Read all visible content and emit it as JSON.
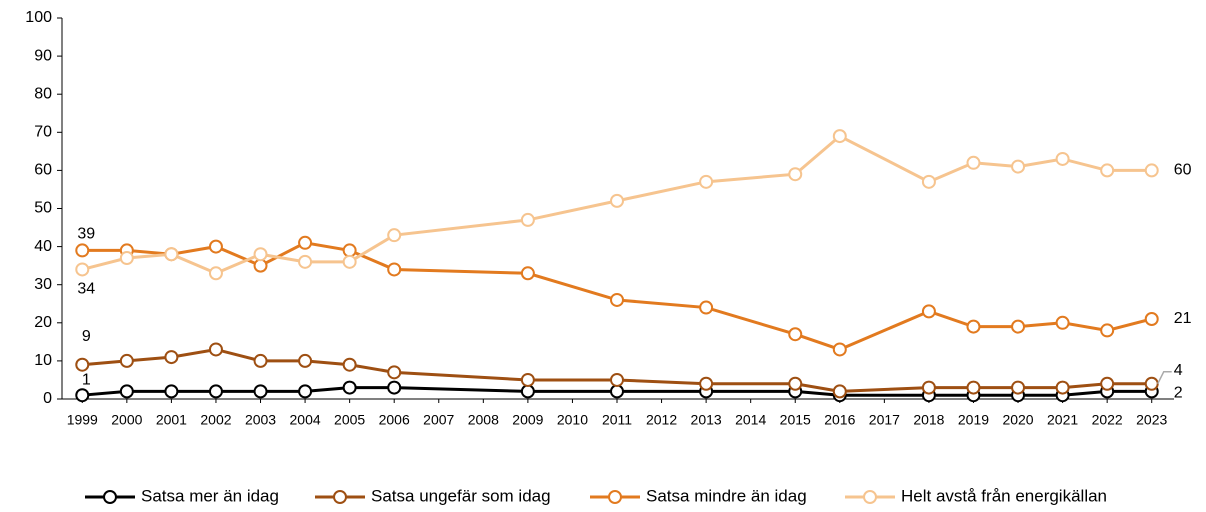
{
  "chart_data": {
    "type": "line",
    "x": [
      1999,
      2000,
      2001,
      2002,
      2003,
      2004,
      2005,
      2006,
      2009,
      2011,
      2013,
      2015,
      2016,
      2018,
      2019,
      2020,
      2021,
      2022,
      2023
    ],
    "series": [
      {
        "name": "Satsa mer än idag",
        "color": "#000000",
        "values": [
          1,
          2,
          2,
          2,
          2,
          2,
          3,
          3,
          2,
          2,
          2,
          2,
          1,
          1,
          1,
          1,
          1,
          2,
          2
        ]
      },
      {
        "name": "Satsa ungefär som idag",
        "color": "#9e4f12",
        "values": [
          9,
          10,
          11,
          13,
          10,
          10,
          9,
          7,
          5,
          5,
          4,
          4,
          2,
          3,
          3,
          3,
          3,
          4,
          4
        ]
      },
      {
        "name": "Satsa mindre än idag",
        "color": "#e27a1f",
        "values": [
          39,
          39,
          38,
          40,
          35,
          41,
          39,
          34,
          33,
          26,
          24,
          17,
          13,
          23,
          19,
          19,
          20,
          18,
          21
        ]
      },
      {
        "name": "Helt avstå från energikällan",
        "color": "#f6c48f",
        "values": [
          34,
          37,
          38,
          33,
          38,
          36,
          36,
          43,
          47,
          52,
          57,
          59,
          69,
          57,
          62,
          61,
          63,
          60,
          60
        ]
      }
    ],
    "xlim": [
      1998.5,
      2023.5
    ],
    "xticks": [
      1999,
      2000,
      2001,
      2002,
      2003,
      2004,
      2005,
      2006,
      2007,
      2008,
      2009,
      2010,
      2011,
      2012,
      2013,
      2014,
      2015,
      2016,
      2017,
      2018,
      2019,
      2020,
      2021,
      2022,
      2023
    ],
    "ylim": [
      0,
      100
    ],
    "yticks": [
      0,
      10,
      20,
      30,
      40,
      50,
      60,
      70,
      80,
      90,
      100
    ],
    "legend": "bottom"
  }
}
